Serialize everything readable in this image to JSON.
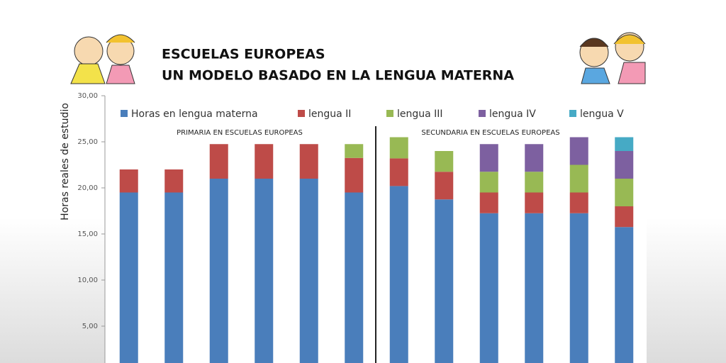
{
  "chart_data": {
    "type": "stacked_bar",
    "title": "ESCUELAS EUROPEAS",
    "subtitle": "UN MODELO BASADO EN LA LENGUA MATERNA",
    "y_label": "Horas reales de estudio",
    "annotations": [
      "PRIMARIA EN ESCUELAS EUROPEAS",
      "SECUNDARIA EN ESCUELAS EUROPEAS"
    ],
    "categories": [
      null,
      null,
      null,
      null,
      null,
      null,
      null,
      null,
      null,
      null,
      null,
      null
    ],
    "series": [
      {
        "name": "Horas en lengua materna",
        "color": "#4a7ebb",
        "values": [
          19.5,
          19.5,
          21,
          21,
          21,
          19.5,
          20.2,
          18.75,
          17.25,
          17.25,
          17.25,
          15.75
        ]
      },
      {
        "name": "lengua II",
        "color": "#be4b48",
        "values": [
          2.5,
          2.5,
          3.75,
          3.75,
          3.75,
          3.75,
          3,
          3,
          2.25,
          2.25,
          2.25,
          2.25
        ]
      },
      {
        "name": "lengua III",
        "color": "#98b954",
        "values": [
          0,
          0,
          0,
          0,
          0,
          1.5,
          2.3,
          2.25,
          2.25,
          2.25,
          3,
          3
        ]
      },
      {
        "name": "lengua IV",
        "color": "#7d60a0",
        "values": [
          0,
          0,
          0,
          0,
          0,
          0,
          0,
          0,
          3,
          3,
          3,
          3
        ]
      },
      {
        "name": "lengua V",
        "color": "#46aac5",
        "values": [
          0,
          0,
          0,
          0,
          0,
          0,
          0,
          0,
          0,
          0,
          0,
          1.5
        ]
      }
    ],
    "ylim": [
      0,
      30
    ],
    "yticks": [
      {
        "value": 5,
        "label": "5,00"
      },
      {
        "value": 10,
        "label": "10,00"
      },
      {
        "value": 15,
        "label": "15,00"
      },
      {
        "value": 20,
        "label": "20,00"
      },
      {
        "value": 25,
        "label": "25,00"
      },
      {
        "value": 30,
        "label": "30,00"
      }
    ],
    "grid": false,
    "legend": "top"
  }
}
